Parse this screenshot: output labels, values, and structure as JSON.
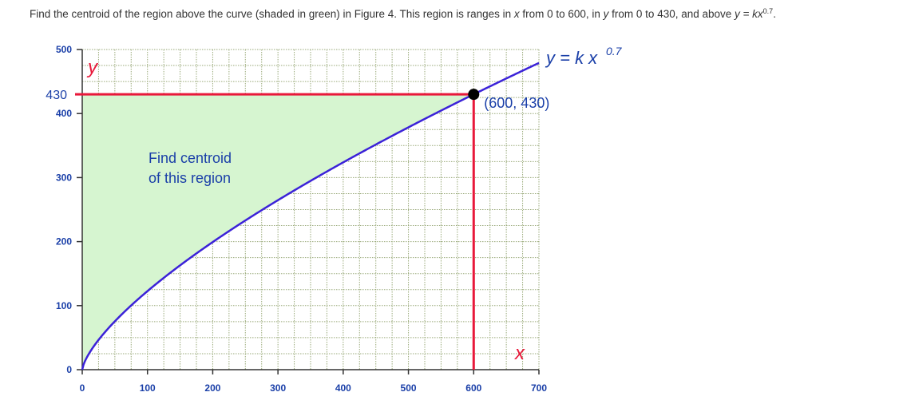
{
  "problem": {
    "prefix": "Find the centroid of the region above the curve (shaded in green) in Figure 4. This region is ranges in ",
    "v_x": "x",
    "mid1": " from 0 to 600, in ",
    "v_y": "y",
    "mid2": " from 0 to 430, and above ",
    "eq": "y = kx",
    "exp": "0.7",
    "end": "."
  },
  "chart_data": {
    "type": "area",
    "x_ticks": [
      "0",
      "100",
      "200",
      "300",
      "400",
      "500",
      "600",
      "700"
    ],
    "y_ticks": [
      "0",
      "100",
      "200",
      "300",
      "400",
      "500"
    ],
    "xlim": [
      0,
      700
    ],
    "ylim": [
      0,
      500
    ],
    "grid": true,
    "curve": {
      "equation": "y = k x",
      "exponent": "0.7",
      "exponent_value": 0.7,
      "passes_through": [
        600,
        430
      ]
    },
    "region": {
      "x_range": [
        0,
        600
      ],
      "y_range": [
        0,
        430
      ],
      "fill": "above curve",
      "label_line1": "Find centroid",
      "label_line2": "of this region"
    },
    "highlight_y": {
      "value": 430,
      "label": "430"
    },
    "highlight_x": {
      "value": 600
    },
    "point": {
      "x": 600,
      "y": 430,
      "label": "(600, 430)"
    },
    "x_axis_letter": "x",
    "y_axis_letter": "y",
    "colors": {
      "curve": "#3b22d8",
      "highlight": "#e8183a",
      "fill": "#d6f5d0",
      "grid": "#9aaa7a",
      "text": "#1a3fa8"
    }
  }
}
